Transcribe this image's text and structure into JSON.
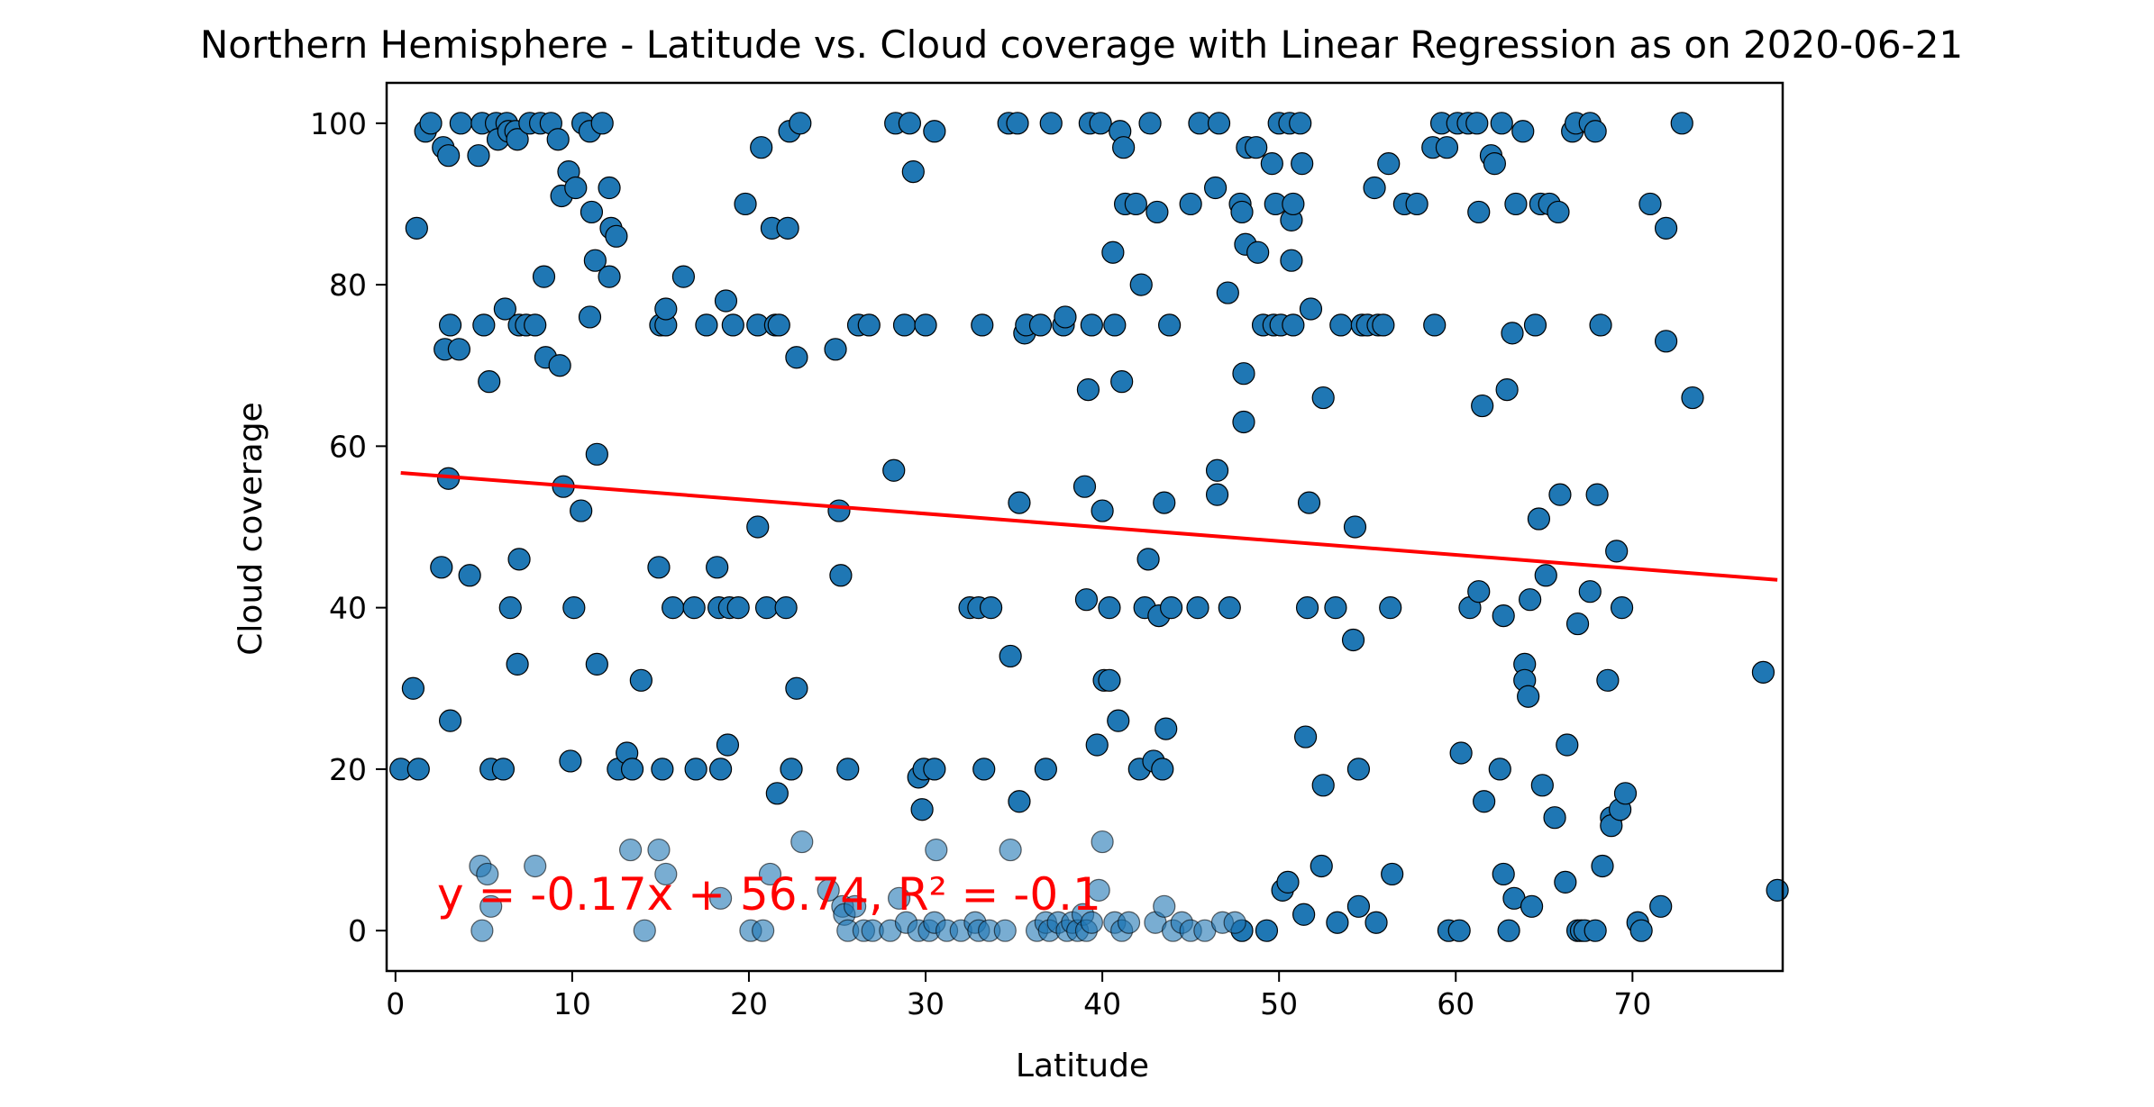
{
  "chart_data": {
    "type": "scatter",
    "title": "Northern Hemisphere - Latitude vs. Cloud coverage with Linear Regression as on 2020-06-21",
    "xlabel": "Latitude",
    "ylabel": "Cloud coverage",
    "xlim": [
      -0.5,
      78.5
    ],
    "ylim": [
      -5,
      105
    ],
    "x_ticks": [
      0,
      10,
      20,
      30,
      40,
      50,
      60,
      70
    ],
    "y_ticks": [
      0,
      20,
      40,
      60,
      80,
      100
    ],
    "grid": false,
    "point_color": "#1f77b4",
    "line_color": "#ff0000",
    "regression": {
      "slope": -0.17,
      "intercept": 56.74,
      "x_range": [
        0.3,
        78.2
      ],
      "annotation": "y = -0.17x + 56.74, R² = -0.1"
    },
    "points": [
      [
        0.3,
        20
      ],
      [
        1.0,
        30
      ],
      [
        1.2,
        87
      ],
      [
        1.3,
        20
      ],
      [
        1.7,
        99
      ],
      [
        2.0,
        100
      ],
      [
        2.6,
        45
      ],
      [
        2.7,
        97
      ],
      [
        2.8,
        72
      ],
      [
        3.0,
        96
      ],
      [
        3.0,
        56
      ],
      [
        3.1,
        26
      ],
      [
        3.1,
        75
      ],
      [
        3.6,
        72
      ],
      [
        3.7,
        100
      ],
      [
        4.2,
        44
      ],
      [
        4.7,
        96
      ],
      [
        4.9,
        100
      ],
      [
        5.0,
        75
      ],
      [
        5.3,
        68
      ],
      [
        5.4,
        20
      ],
      [
        5.7,
        100
      ],
      [
        5.8,
        98
      ],
      [
        6.1,
        20
      ],
      [
        6.2,
        77
      ],
      [
        6.3,
        100
      ],
      [
        6.4,
        99
      ],
      [
        6.5,
        40
      ],
      [
        6.8,
        99
      ],
      [
        6.9,
        98
      ],
      [
        6.9,
        33
      ],
      [
        7.0,
        46
      ],
      [
        7.0,
        75
      ],
      [
        7.4,
        75
      ],
      [
        7.6,
        100
      ],
      [
        7.9,
        75
      ],
      [
        8.2,
        100
      ],
      [
        8.4,
        81
      ],
      [
        8.5,
        71
      ],
      [
        8.8,
        100
      ],
      [
        9.2,
        98
      ],
      [
        9.3,
        70
      ],
      [
        9.4,
        91
      ],
      [
        9.5,
        55
      ],
      [
        9.8,
        94
      ],
      [
        9.9,
        21
      ],
      [
        10.1,
        40
      ],
      [
        10.2,
        92
      ],
      [
        10.5,
        52
      ],
      [
        10.6,
        100
      ],
      [
        11.0,
        99
      ],
      [
        11.0,
        76
      ],
      [
        11.1,
        89
      ],
      [
        11.3,
        83
      ],
      [
        11.4,
        59
      ],
      [
        11.4,
        33
      ],
      [
        11.7,
        100
      ],
      [
        12.1,
        92
      ],
      [
        12.1,
        81
      ],
      [
        12.2,
        87
      ],
      [
        12.5,
        86
      ],
      [
        12.6,
        20
      ],
      [
        13.1,
        22
      ],
      [
        13.4,
        20
      ],
      [
        13.9,
        31
      ],
      [
        14.9,
        45
      ],
      [
        15.0,
        75
      ],
      [
        15.1,
        20
      ],
      [
        15.3,
        75
      ],
      [
        15.3,
        77
      ],
      [
        15.7,
        40
      ],
      [
        16.3,
        81
      ],
      [
        16.9,
        40
      ],
      [
        17.0,
        20
      ],
      [
        17.6,
        75
      ],
      [
        18.2,
        45
      ],
      [
        18.3,
        40
      ],
      [
        18.4,
        20
      ],
      [
        18.7,
        78
      ],
      [
        18.8,
        23
      ],
      [
        18.9,
        40
      ],
      [
        19.1,
        75
      ],
      [
        19.4,
        40
      ],
      [
        19.8,
        90
      ],
      [
        20.5,
        75
      ],
      [
        20.5,
        50
      ],
      [
        20.7,
        97
      ],
      [
        21.0,
        40
      ],
      [
        21.3,
        87
      ],
      [
        21.5,
        75
      ],
      [
        21.6,
        17
      ],
      [
        21.7,
        75
      ],
      [
        22.1,
        40
      ],
      [
        22.2,
        87
      ],
      [
        22.3,
        99
      ],
      [
        22.4,
        20
      ],
      [
        22.7,
        71
      ],
      [
        22.7,
        30
      ],
      [
        22.9,
        100
      ],
      [
        24.9,
        72
      ],
      [
        25.1,
        52
      ],
      [
        25.2,
        44
      ],
      [
        25.6,
        20
      ],
      [
        26.2,
        75
      ],
      [
        26.8,
        75
      ],
      [
        28.2,
        57
      ],
      [
        28.3,
        100
      ],
      [
        28.8,
        75
      ],
      [
        29.1,
        100
      ],
      [
        29.3,
        94
      ],
      [
        29.6,
        19
      ],
      [
        29.8,
        15
      ],
      [
        29.9,
        20
      ],
      [
        30.0,
        75
      ],
      [
        30.5,
        99
      ],
      [
        30.5,
        20
      ],
      [
        32.5,
        40
      ],
      [
        33.0,
        40
      ],
      [
        33.2,
        75
      ],
      [
        33.3,
        20
      ],
      [
        33.7,
        40
      ],
      [
        34.7,
        100
      ],
      [
        34.8,
        34
      ],
      [
        35.2,
        100
      ],
      [
        35.3,
        16
      ],
      [
        35.3,
        53
      ],
      [
        35.6,
        74
      ],
      [
        35.7,
        75
      ],
      [
        36.5,
        75
      ],
      [
        36.8,
        20
      ],
      [
        37.1,
        100
      ],
      [
        37.8,
        75
      ],
      [
        37.9,
        76
      ],
      [
        39.0,
        55
      ],
      [
        39.1,
        41
      ],
      [
        39.2,
        67
      ],
      [
        39.3,
        100
      ],
      [
        39.4,
        75
      ],
      [
        39.7,
        23
      ],
      [
        39.9,
        100
      ],
      [
        40.0,
        52
      ],
      [
        40.1,
        31
      ],
      [
        40.4,
        40
      ],
      [
        40.4,
        31
      ],
      [
        40.6,
        84
      ],
      [
        40.7,
        75
      ],
      [
        40.9,
        26
      ],
      [
        41.0,
        99
      ],
      [
        41.1,
        68
      ],
      [
        41.2,
        97
      ],
      [
        41.3,
        90
      ],
      [
        41.9,
        90
      ],
      [
        42.1,
        20
      ],
      [
        42.2,
        80
      ],
      [
        42.4,
        40
      ],
      [
        42.6,
        46
      ],
      [
        42.7,
        100
      ],
      [
        42.9,
        21
      ],
      [
        43.1,
        89
      ],
      [
        43.2,
        39
      ],
      [
        43.4,
        20
      ],
      [
        43.5,
        53
      ],
      [
        43.6,
        25
      ],
      [
        43.8,
        75
      ],
      [
        43.9,
        40
      ],
      [
        45.0,
        90
      ],
      [
        45.4,
        40
      ],
      [
        45.5,
        100
      ],
      [
        46.4,
        92
      ],
      [
        46.5,
        57
      ],
      [
        46.5,
        54
      ],
      [
        46.6,
        100
      ],
      [
        47.1,
        79
      ],
      [
        47.2,
        40
      ],
      [
        47.8,
        90
      ],
      [
        47.9,
        89
      ],
      [
        48.0,
        69
      ],
      [
        48.0,
        63
      ],
      [
        48.1,
        85
      ],
      [
        48.2,
        97
      ],
      [
        48.7,
        97
      ],
      [
        48.8,
        84
      ],
      [
        49.1,
        75
      ],
      [
        49.6,
        95
      ],
      [
        49.7,
        75
      ],
      [
        49.8,
        90
      ],
      [
        50.0,
        100
      ],
      [
        50.1,
        75
      ],
      [
        50.6,
        100
      ],
      [
        50.7,
        88
      ],
      [
        50.8,
        90
      ],
      [
        50.7,
        83
      ],
      [
        50.8,
        75
      ],
      [
        51.2,
        100
      ],
      [
        51.3,
        95
      ],
      [
        51.5,
        24
      ],
      [
        51.6,
        40
      ],
      [
        51.7,
        53
      ],
      [
        51.8,
        77
      ],
      [
        52.5,
        66
      ],
      [
        52.5,
        18
      ],
      [
        53.2,
        40
      ],
      [
        53.5,
        75
      ],
      [
        54.2,
        36
      ],
      [
        54.3,
        50
      ],
      [
        54.5,
        20
      ],
      [
        54.7,
        75
      ],
      [
        55.0,
        75
      ],
      [
        55.4,
        92
      ],
      [
        55.6,
        75
      ],
      [
        55.9,
        75
      ],
      [
        56.2,
        95
      ],
      [
        56.3,
        40
      ],
      [
        57.1,
        90
      ],
      [
        57.8,
        90
      ],
      [
        58.7,
        97
      ],
      [
        58.8,
        75
      ],
      [
        59.2,
        100
      ],
      [
        59.5,
        97
      ],
      [
        60.1,
        100
      ],
      [
        60.3,
        22
      ],
      [
        60.7,
        100
      ],
      [
        60.8,
        40
      ],
      [
        61.2,
        100
      ],
      [
        61.3,
        42
      ],
      [
        61.3,
        89
      ],
      [
        61.5,
        65
      ],
      [
        61.6,
        16
      ],
      [
        62.0,
        96
      ],
      [
        62.2,
        95
      ],
      [
        62.5,
        20
      ],
      [
        62.6,
        100
      ],
      [
        62.7,
        39
      ],
      [
        62.7,
        7
      ],
      [
        62.9,
        67
      ],
      [
        63.2,
        74
      ],
      [
        63.4,
        90
      ],
      [
        63.8,
        99
      ],
      [
        63.9,
        33
      ],
      [
        63.9,
        31
      ],
      [
        64.1,
        29
      ],
      [
        64.2,
        41
      ],
      [
        64.5,
        75
      ],
      [
        64.7,
        51
      ],
      [
        64.8,
        90
      ],
      [
        64.9,
        18
      ],
      [
        65.1,
        44
      ],
      [
        65.3,
        90
      ],
      [
        65.6,
        14
      ],
      [
        65.8,
        89
      ],
      [
        65.9,
        54
      ],
      [
        66.2,
        6
      ],
      [
        66.3,
        23
      ],
      [
        66.6,
        99
      ],
      [
        66.8,
        100
      ],
      [
        66.9,
        38
      ],
      [
        67.6,
        100
      ],
      [
        67.6,
        42
      ],
      [
        67.9,
        99
      ],
      [
        68.0,
        54
      ],
      [
        68.2,
        75
      ],
      [
        68.3,
        8
      ],
      [
        68.6,
        31
      ],
      [
        68.8,
        14
      ],
      [
        68.8,
        13
      ],
      [
        69.1,
        47
      ],
      [
        69.3,
        15
      ],
      [
        69.4,
        40
      ],
      [
        69.6,
        17
      ],
      [
        70.3,
        1
      ],
      [
        71.0,
        90
      ],
      [
        71.6,
        3
      ],
      [
        71.9,
        87
      ],
      [
        71.9,
        73
      ],
      [
        72.8,
        100
      ],
      [
        73.4,
        66
      ],
      [
        77.4,
        32
      ],
      [
        78.2,
        5
      ],
      [
        59.6,
        0
      ],
      [
        60.2,
        0
      ],
      [
        63.0,
        0
      ],
      [
        66.9,
        0
      ],
      [
        67.1,
        0
      ],
      [
        67.3,
        0
      ],
      [
        67.9,
        0
      ],
      [
        70.5,
        0
      ],
      [
        47.9,
        0
      ],
      [
        49.3,
        0
      ],
      [
        50.2,
        5
      ],
      [
        50.5,
        6
      ],
      [
        51.4,
        2
      ],
      [
        52.4,
        8
      ],
      [
        53.3,
        1
      ],
      [
        54.5,
        3
      ],
      [
        55.5,
        1
      ],
      [
        56.4,
        7
      ],
      [
        63.3,
        4
      ],
      [
        64.3,
        3
      ]
    ],
    "points_faded": [
      [
        4.8,
        8
      ],
      [
        4.9,
        0
      ],
      [
        5.2,
        7
      ],
      [
        5.4,
        3
      ],
      [
        7.9,
        8
      ],
      [
        13.3,
        10
      ],
      [
        14.1,
        0
      ],
      [
        14.9,
        10
      ],
      [
        15.3,
        7
      ],
      [
        18.4,
        4
      ],
      [
        20.1,
        0
      ],
      [
        20.8,
        0
      ],
      [
        21.2,
        7
      ],
      [
        23.0,
        11
      ],
      [
        24.5,
        5
      ],
      [
        25.3,
        3
      ],
      [
        25.4,
        2
      ],
      [
        25.6,
        0
      ],
      [
        26.0,
        3
      ],
      [
        26.5,
        0
      ],
      [
        27.0,
        0
      ],
      [
        28.0,
        0
      ],
      [
        28.5,
        4
      ],
      [
        28.9,
        1
      ],
      [
        29.6,
        0
      ],
      [
        30.2,
        0
      ],
      [
        30.5,
        1
      ],
      [
        30.6,
        10
      ],
      [
        31.2,
        0
      ],
      [
        32.0,
        0
      ],
      [
        32.8,
        1
      ],
      [
        33.0,
        0
      ],
      [
        33.6,
        0
      ],
      [
        34.5,
        0
      ],
      [
        34.8,
        10
      ],
      [
        36.3,
        0
      ],
      [
        36.8,
        1
      ],
      [
        37.0,
        0
      ],
      [
        37.5,
        1
      ],
      [
        38.0,
        0
      ],
      [
        38.3,
        1
      ],
      [
        38.6,
        0
      ],
      [
        38.9,
        2
      ],
      [
        39.1,
        0
      ],
      [
        39.4,
        1
      ],
      [
        39.8,
        5
      ],
      [
        40.0,
        11
      ],
      [
        40.7,
        1
      ],
      [
        41.1,
        0
      ],
      [
        41.5,
        1
      ],
      [
        43.0,
        1
      ],
      [
        43.5,
        3
      ],
      [
        44.0,
        0
      ],
      [
        44.5,
        1
      ],
      [
        45.0,
        0
      ],
      [
        45.8,
        0
      ],
      [
        46.8,
        1
      ],
      [
        47.5,
        1
      ]
    ]
  }
}
